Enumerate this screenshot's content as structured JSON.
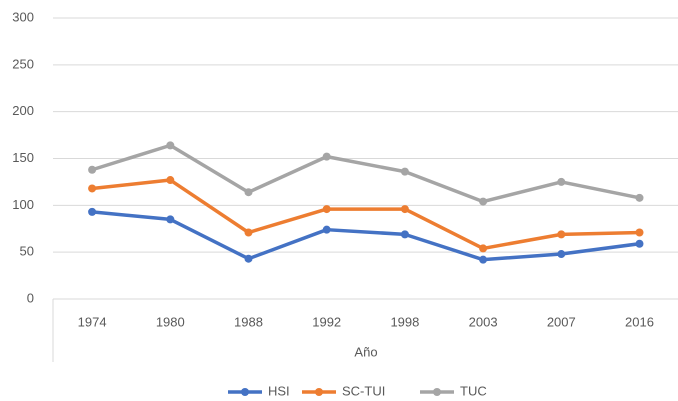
{
  "chart_data": {
    "type": "line",
    "x_label": "Año",
    "categories": [
      "1974",
      "1980",
      "1988",
      "1992",
      "1998",
      "2003",
      "2007",
      "2016"
    ],
    "series": [
      {
        "name": "HSI",
        "color": "#4472c4",
        "values": [
          93,
          85,
          43,
          74,
          69,
          42,
          48,
          59
        ]
      },
      {
        "name": "SC-TUI",
        "color": "#ed7d31",
        "values": [
          118,
          127,
          71,
          96,
          96,
          54,
          69,
          71
        ]
      },
      {
        "name": "TUC",
        "color": "#a5a5a5",
        "values": [
          138,
          164,
          114,
          152,
          136,
          104,
          125,
          108
        ]
      }
    ],
    "ylim": [
      0,
      300
    ],
    "yticks": [
      0,
      50,
      100,
      150,
      200,
      250,
      300
    ],
    "grid": true,
    "legend": "bottom"
  }
}
